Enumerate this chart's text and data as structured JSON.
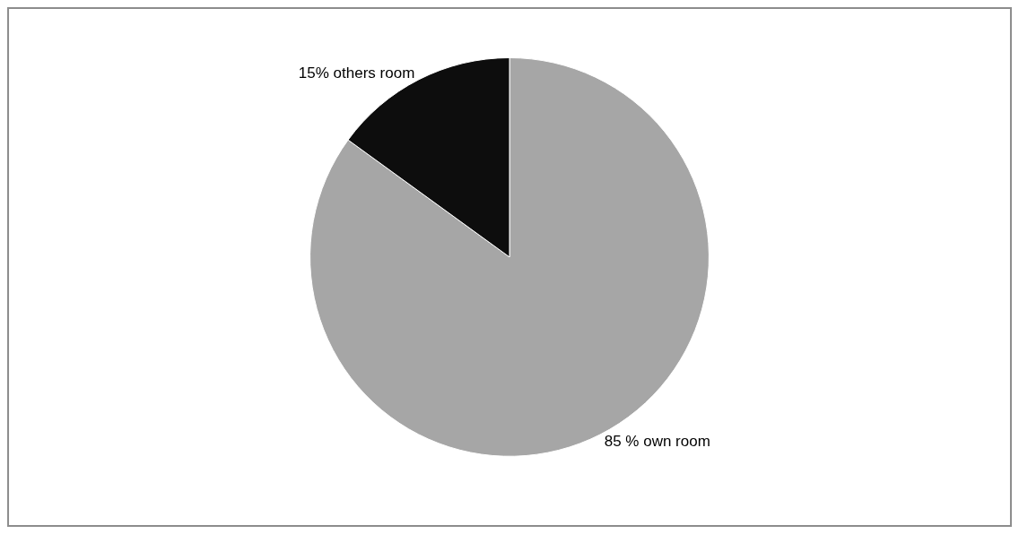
{
  "chart_data": {
    "type": "pie",
    "categories": [
      null,
      null
    ],
    "values": [
      85,
      15
    ],
    "colors": [
      "#a6a6a6",
      "#0d0d0d"
    ],
    "value_labels": [
      "85 % own room",
      "15% others room"
    ],
    "legend": false
  }
}
